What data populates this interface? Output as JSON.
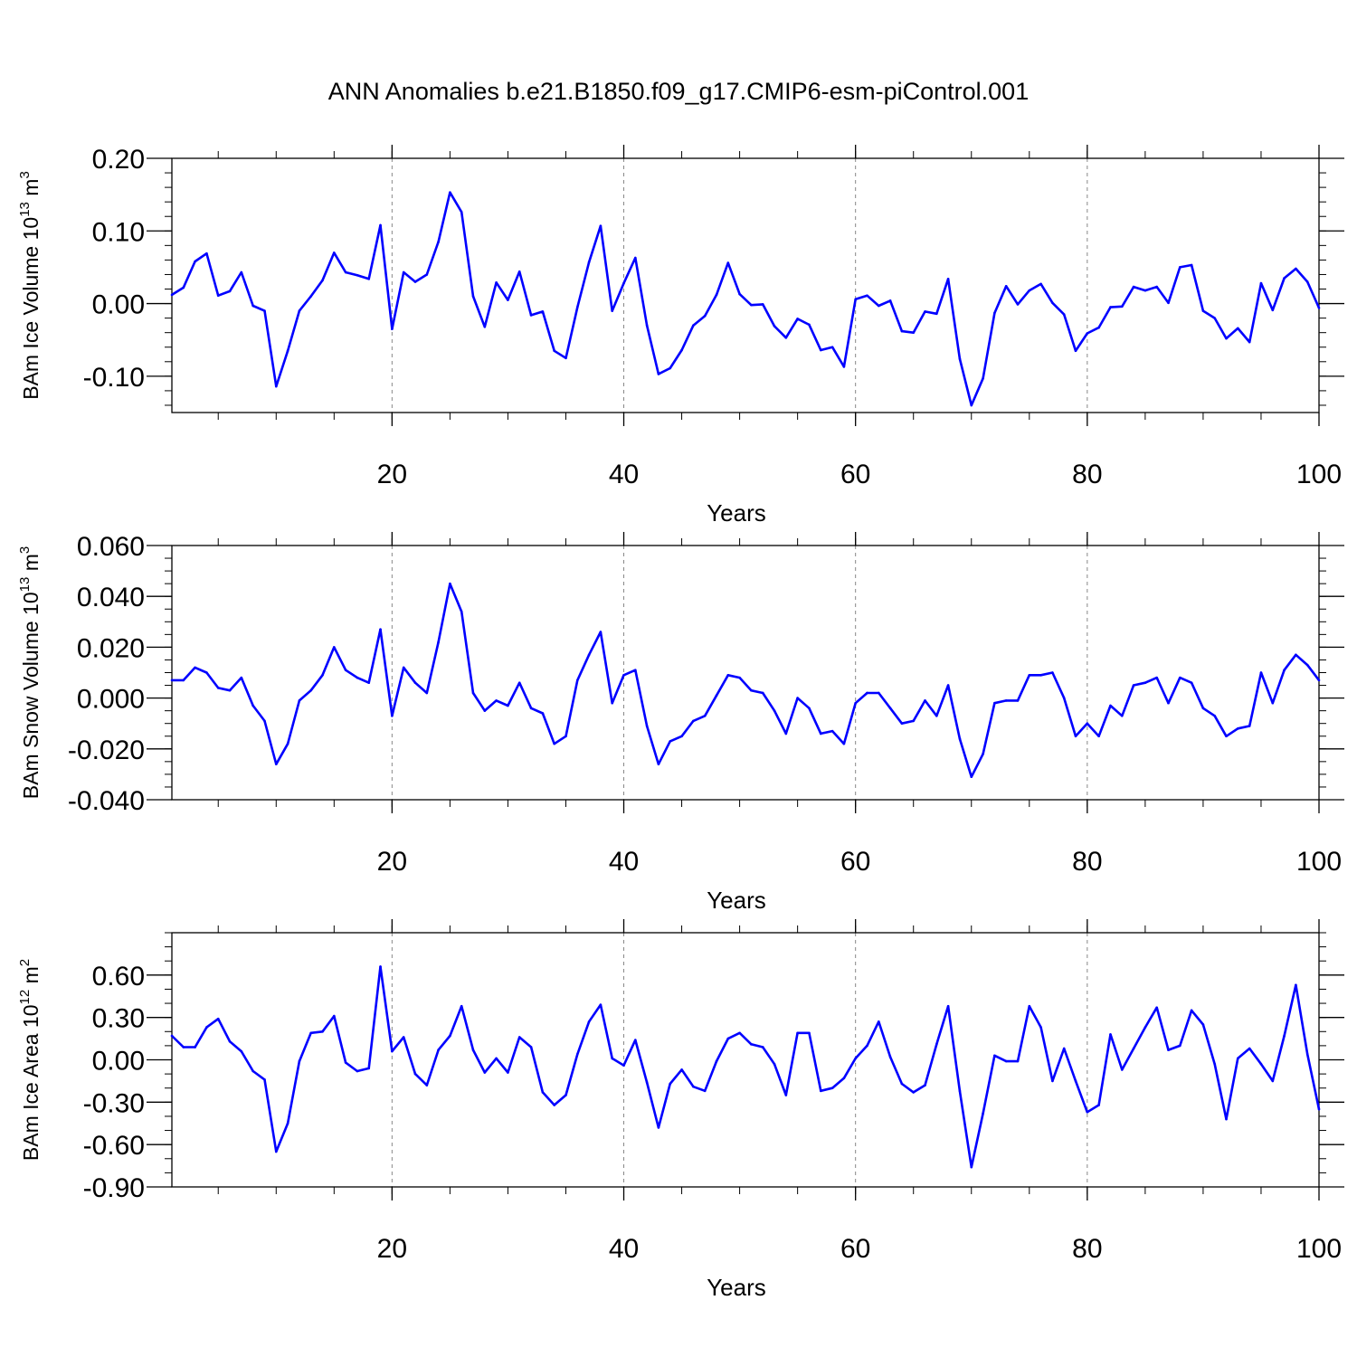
{
  "title": "ANN Anomalies b.e21.B1850.f09_g17.CMIP6-esm-piControl.001",
  "chart_data": [
    {
      "type": "line",
      "title": "",
      "ylabel": "BAm Ice Volume 10",
      "ylabel_exp": "13",
      "ylabel_unit": " m",
      "ylabel_unit_exp": "3",
      "xlabel": "Years",
      "xlim": [
        1,
        100
      ],
      "ylim": [
        -0.15,
        0.2
      ],
      "xticks": [
        20,
        40,
        60,
        80,
        100
      ],
      "xtick_labels": [
        "20",
        "40",
        "60",
        "80",
        "100"
      ],
      "yticks": [
        0.2,
        0.1,
        0.0,
        -0.1
      ],
      "ytick_labels": [
        "0.20",
        "0.10",
        "0.00",
        "-0.10"
      ],
      "y_minor_step": 0.02,
      "grid": "vertical dashed at x ticks",
      "color": "#0000ff",
      "x": [
        1,
        2,
        3,
        4,
        5,
        6,
        7,
        8,
        9,
        10,
        11,
        12,
        13,
        14,
        15,
        16,
        17,
        18,
        19,
        20,
        21,
        22,
        23,
        24,
        25,
        26,
        27,
        28,
        29,
        30,
        31,
        32,
        33,
        34,
        35,
        36,
        37,
        38,
        39,
        40,
        41,
        42,
        43,
        44,
        45,
        46,
        47,
        48,
        49,
        50,
        51,
        52,
        53,
        54,
        55,
        56,
        57,
        58,
        59,
        60,
        61,
        62,
        63,
        64,
        65,
        66,
        67,
        68,
        69,
        70,
        71,
        72,
        73,
        74,
        75,
        76,
        77,
        78,
        79,
        80,
        81,
        82,
        83,
        84,
        85,
        86,
        87,
        88,
        89,
        90,
        91,
        92,
        93,
        94,
        95,
        96,
        97,
        98,
        99,
        100
      ],
      "values": [
        0.012,
        0.022,
        0.058,
        0.069,
        0.011,
        0.017,
        0.043,
        -0.003,
        -0.01,
        -0.114,
        -0.065,
        -0.01,
        0.01,
        0.032,
        0.07,
        0.043,
        0.039,
        0.034,
        0.108,
        -0.035,
        0.043,
        0.03,
        0.04,
        0.085,
        0.153,
        0.126,
        0.01,
        -0.032,
        0.029,
        0.005,
        0.044,
        -0.016,
        -0.011,
        -0.065,
        -0.075,
        -0.005,
        0.057,
        0.107,
        -0.01,
        0.028,
        0.063,
        -0.03,
        -0.097,
        -0.089,
        -0.064,
        -0.03,
        -0.017,
        0.012,
        0.056,
        0.013,
        -0.002,
        -0.001,
        -0.031,
        -0.047,
        -0.021,
        -0.029,
        -0.064,
        -0.06,
        -0.087,
        0.006,
        0.011,
        -0.003,
        0.004,
        -0.038,
        -0.04,
        -0.011,
        -0.014,
        0.034,
        -0.076,
        -0.14,
        -0.103,
        -0.013,
        0.024,
        -0.001,
        0.018,
        0.027,
        0.001,
        -0.015,
        -0.065,
        -0.041,
        -0.033,
        -0.005,
        -0.004,
        0.023,
        0.018,
        0.023,
        0.001,
        0.05,
        0.053,
        -0.01,
        -0.02,
        -0.048,
        -0.034,
        -0.053,
        0.028,
        -0.009,
        0.035,
        0.048,
        0.03,
        -0.006
      ]
    },
    {
      "type": "line",
      "title": "",
      "ylabel": "BAm Snow Volume 10",
      "ylabel_exp": "13",
      "ylabel_unit": " m",
      "ylabel_unit_exp": "3",
      "xlabel": "Years",
      "xlim": [
        1,
        100
      ],
      "ylim": [
        -0.04,
        0.06
      ],
      "xticks": [
        20,
        40,
        60,
        80,
        100
      ],
      "xtick_labels": [
        "20",
        "40",
        "60",
        "80",
        "100"
      ],
      "yticks": [
        0.06,
        0.04,
        0.02,
        0.0,
        -0.02,
        -0.04
      ],
      "ytick_labels": [
        "0.060",
        "0.040",
        "0.020",
        "0.000",
        "-0.020",
        "-0.040"
      ],
      "y_minor_step": 0.005,
      "grid": "vertical dashed at x ticks",
      "color": "#0000ff",
      "x": [
        1,
        2,
        3,
        4,
        5,
        6,
        7,
        8,
        9,
        10,
        11,
        12,
        13,
        14,
        15,
        16,
        17,
        18,
        19,
        20,
        21,
        22,
        23,
        24,
        25,
        26,
        27,
        28,
        29,
        30,
        31,
        32,
        33,
        34,
        35,
        36,
        37,
        38,
        39,
        40,
        41,
        42,
        43,
        44,
        45,
        46,
        47,
        48,
        49,
        50,
        51,
        52,
        53,
        54,
        55,
        56,
        57,
        58,
        59,
        60,
        61,
        62,
        63,
        64,
        65,
        66,
        67,
        68,
        69,
        70,
        71,
        72,
        73,
        74,
        75,
        76,
        77,
        78,
        79,
        80,
        81,
        82,
        83,
        84,
        85,
        86,
        87,
        88,
        89,
        90,
        91,
        92,
        93,
        94,
        95,
        96,
        97,
        98,
        99,
        100
      ],
      "values": [
        0.007,
        0.007,
        0.012,
        0.01,
        0.004,
        0.003,
        0.008,
        -0.003,
        -0.009,
        -0.026,
        -0.018,
        -0.001,
        0.003,
        0.009,
        0.02,
        0.011,
        0.008,
        0.006,
        0.027,
        -0.007,
        0.012,
        0.006,
        0.002,
        0.022,
        0.045,
        0.034,
        0.002,
        -0.005,
        -0.001,
        -0.003,
        0.006,
        -0.004,
        -0.006,
        -0.018,
        -0.015,
        0.007,
        0.017,
        0.026,
        -0.002,
        0.009,
        0.011,
        -0.011,
        -0.026,
        -0.017,
        -0.015,
        -0.009,
        -0.007,
        0.001,
        0.009,
        0.008,
        0.003,
        0.002,
        -0.005,
        -0.014,
        0.0,
        -0.004,
        -0.014,
        -0.013,
        -0.018,
        -0.002,
        0.002,
        0.002,
        -0.004,
        -0.01,
        -0.009,
        -0.001,
        -0.007,
        0.005,
        -0.016,
        -0.031,
        -0.022,
        -0.002,
        -0.001,
        -0.001,
        0.009,
        0.009,
        0.01,
        0.0,
        -0.015,
        -0.01,
        -0.015,
        -0.003,
        -0.007,
        0.005,
        0.006,
        0.008,
        -0.002,
        0.008,
        0.006,
        -0.004,
        -0.007,
        -0.015,
        -0.012,
        -0.011,
        0.01,
        -0.002,
        0.011,
        0.017,
        0.013,
        0.007
      ]
    },
    {
      "type": "line",
      "title": "",
      "ylabel": "BAm Ice Area 10",
      "ylabel_exp": "12",
      "ylabel_unit": " m",
      "ylabel_unit_exp": "2",
      "xlabel": "Years",
      "xlim": [
        1,
        100
      ],
      "ylim": [
        -0.9,
        0.9
      ],
      "xticks": [
        20,
        40,
        60,
        80,
        100
      ],
      "xtick_labels": [
        "20",
        "40",
        "60",
        "80",
        "100"
      ],
      "yticks": [
        0.6,
        0.3,
        0.0,
        -0.3,
        -0.6,
        -0.9
      ],
      "ytick_labels": [
        "0.60",
        "0.30",
        "0.00",
        "-0.30",
        "-0.60",
        "-0.90"
      ],
      "y_minor_step": 0.1,
      "grid": "vertical dashed at x ticks",
      "color": "#0000ff",
      "x": [
        1,
        2,
        3,
        4,
        5,
        6,
        7,
        8,
        9,
        10,
        11,
        12,
        13,
        14,
        15,
        16,
        17,
        18,
        19,
        20,
        21,
        22,
        23,
        24,
        25,
        26,
        27,
        28,
        29,
        30,
        31,
        32,
        33,
        34,
        35,
        36,
        37,
        38,
        39,
        40,
        41,
        42,
        43,
        44,
        45,
        46,
        47,
        48,
        49,
        50,
        51,
        52,
        53,
        54,
        55,
        56,
        57,
        58,
        59,
        60,
        61,
        62,
        63,
        64,
        65,
        66,
        67,
        68,
        69,
        70,
        71,
        72,
        73,
        74,
        75,
        76,
        77,
        78,
        79,
        80,
        81,
        82,
        83,
        84,
        85,
        86,
        87,
        88,
        89,
        90,
        91,
        92,
        93,
        94,
        95,
        96,
        97,
        98,
        99,
        100
      ],
      "values": [
        0.17,
        0.09,
        0.09,
        0.23,
        0.29,
        0.13,
        0.06,
        -0.08,
        -0.14,
        -0.65,
        -0.45,
        -0.01,
        0.19,
        0.2,
        0.31,
        -0.02,
        -0.08,
        -0.06,
        0.66,
        0.06,
        0.16,
        -0.1,
        -0.18,
        0.07,
        0.17,
        0.38,
        0.07,
        -0.09,
        0.01,
        -0.09,
        0.16,
        0.09,
        -0.23,
        -0.32,
        -0.25,
        0.04,
        0.27,
        0.39,
        0.01,
        -0.04,
        0.14,
        -0.16,
        -0.48,
        -0.17,
        -0.07,
        -0.19,
        -0.22,
        -0.01,
        0.15,
        0.19,
        0.11,
        0.09,
        -0.03,
        -0.25,
        0.19,
        0.19,
        -0.22,
        -0.2,
        -0.13,
        0.01,
        0.1,
        0.27,
        0.02,
        -0.17,
        -0.23,
        -0.18,
        0.11,
        0.38,
        -0.22,
        -0.76,
        -0.38,
        0.03,
        -0.01,
        -0.01,
        0.38,
        0.23,
        -0.15,
        0.08,
        -0.15,
        -0.37,
        -0.32,
        0.18,
        -0.07,
        0.08,
        0.23,
        0.37,
        0.07,
        0.1,
        0.35,
        0.25,
        -0.03,
        -0.42,
        0.01,
        0.08,
        -0.03,
        -0.15,
        0.17,
        0.53,
        0.04,
        -0.35
      ]
    }
  ]
}
